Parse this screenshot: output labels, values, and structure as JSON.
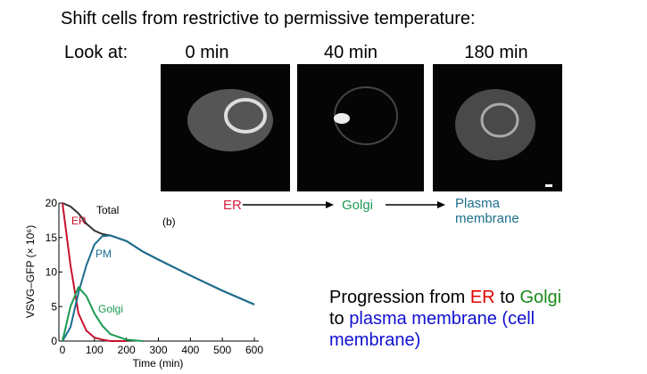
{
  "slide_title": "Shift cells from restrictive to permissive temperature:",
  "look_at": "Look at:",
  "time_points": [
    "0 min",
    "40 min",
    "180 min"
  ],
  "pathway": [
    {
      "text": "ER",
      "color": "#d4213d"
    },
    {
      "text": "Golgi",
      "color": "#1f9a56"
    },
    {
      "text": "Plasma membrane",
      "color": "#1d6f8c"
    }
  ],
  "summary": [
    [
      {
        "text": "Progression from ",
        "color": "#000000"
      },
      {
        "text": "ER",
        "color": "#e00000"
      },
      {
        "text": " to ",
        "color": "#000000"
      },
      {
        "text": "Golgi",
        "color": "#1a8a1a"
      }
    ],
    [
      {
        "text": "to ",
        "color": "#000000"
      },
      {
        "text": "plasma membrane (cell",
        "color": "#1010d0"
      }
    ],
    [
      {
        "text": "membrane)",
        "color": "#1010d0"
      }
    ]
  ],
  "chart_data": {
    "type": "line",
    "panel_label": "(b)",
    "x_label": "Time (min)",
    "y_label": "VSVG–GFP (× 10⁶)",
    "x": [
      0,
      25,
      50,
      75,
      100,
      125,
      150,
      200,
      250,
      300,
      400,
      500,
      600
    ],
    "series": [
      {
        "name": "Total",
        "color": "#333333",
        "values": [
          20,
          19.5,
          18.5,
          17,
          16,
          15.5,
          15.3,
          14.5,
          13,
          11.8,
          9.5,
          7.3,
          5.3
        ]
      },
      {
        "name": "ER",
        "color": "#c8102e",
        "values": [
          20,
          11,
          4,
          1.5,
          0.5,
          0.2,
          0,
          0,
          null,
          null,
          null,
          null,
          null
        ]
      },
      {
        "name": "PM",
        "color": "#1b6e8f",
        "values": [
          0,
          2,
          7,
          11,
          14,
          15.2,
          15.3,
          14.5,
          13,
          11.8,
          9.5,
          7.3,
          5.3
        ]
      },
      {
        "name": "Golgi",
        "color": "#1a9a50",
        "values": [
          0,
          5,
          7.8,
          6.5,
          4,
          2.2,
          1,
          0.2,
          0,
          null,
          null,
          null,
          null
        ]
      }
    ],
    "xlim": [
      0,
      600
    ],
    "ylim": [
      0,
      20
    ],
    "xticks": [
      0,
      100,
      200,
      300,
      400,
      500,
      600
    ],
    "yticks": [
      0,
      5,
      10,
      15,
      20
    ]
  }
}
